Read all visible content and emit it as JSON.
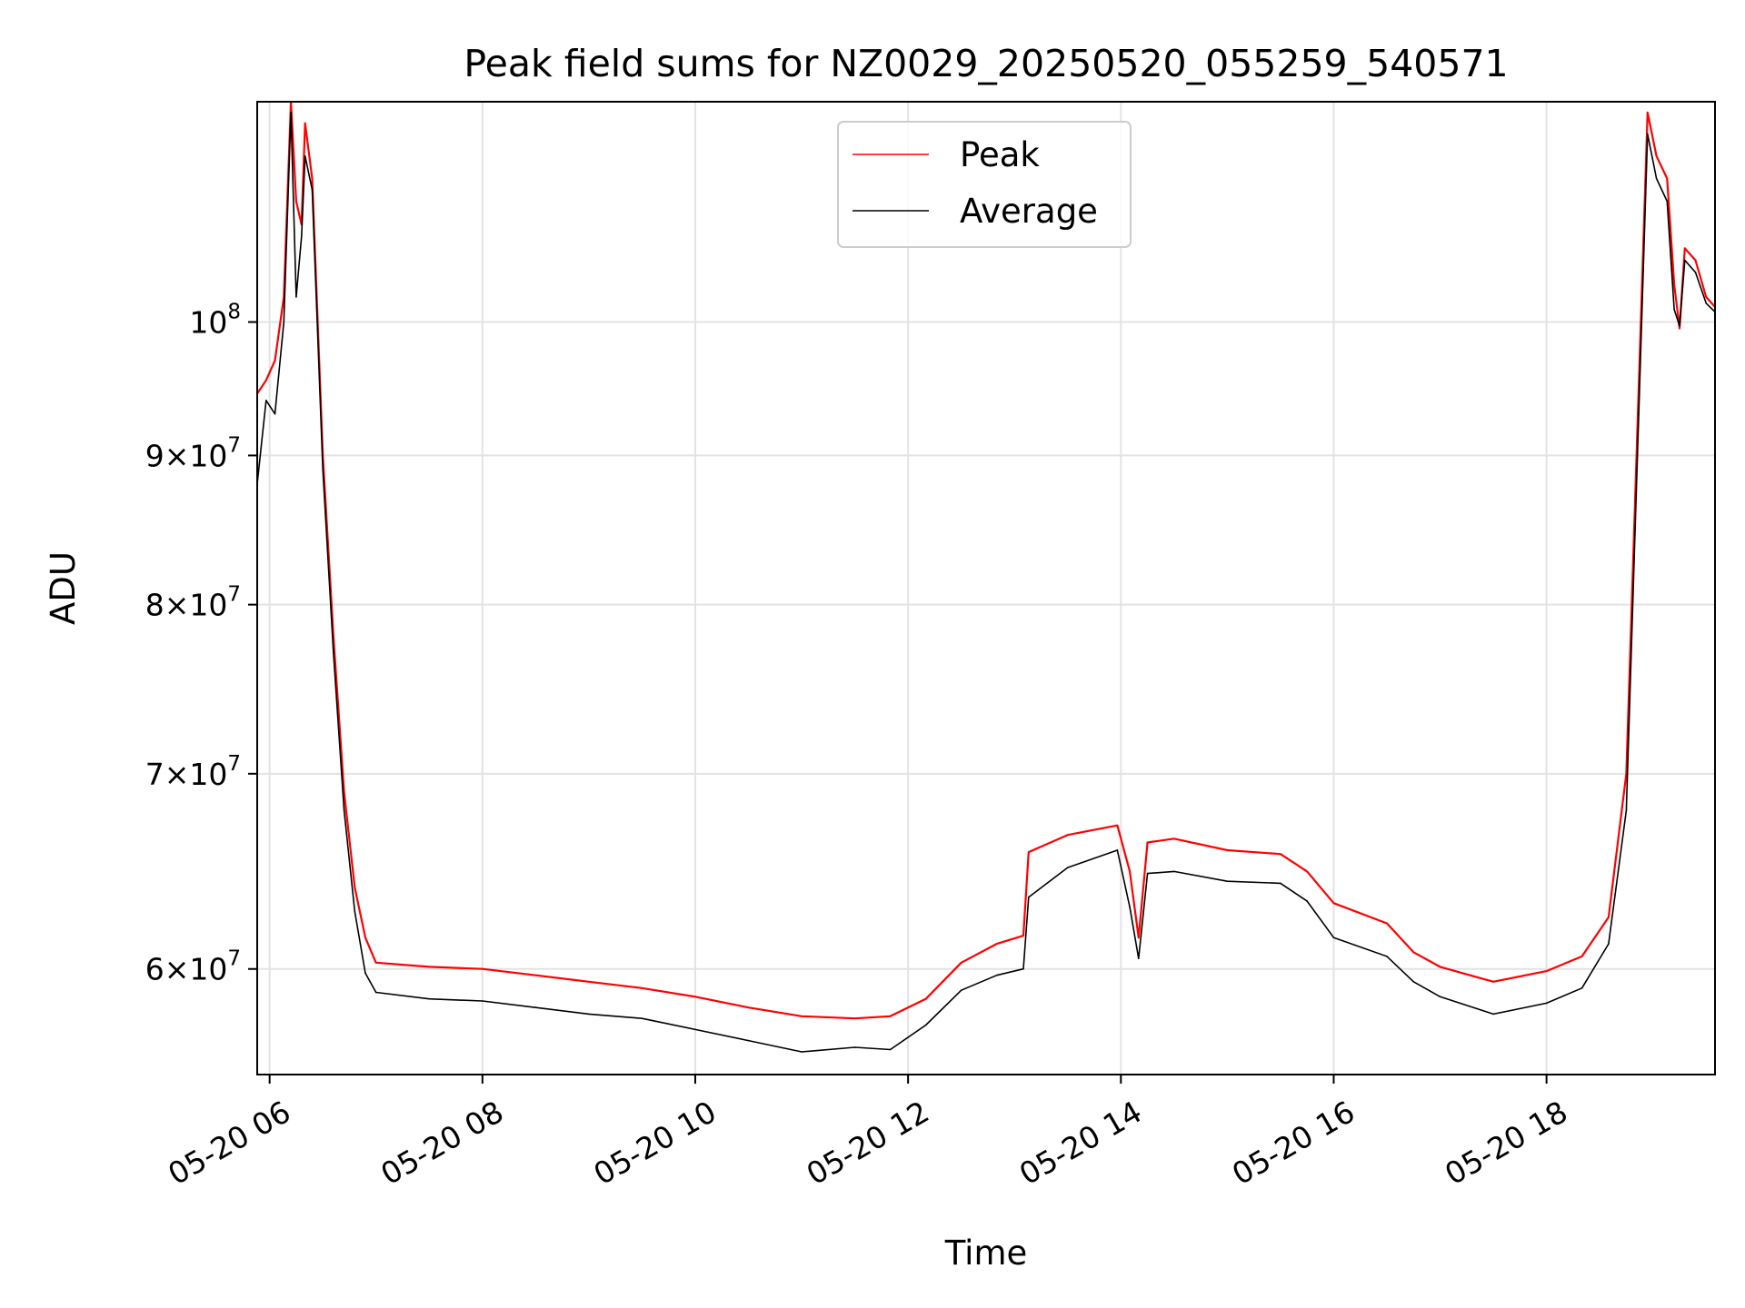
{
  "chart_data": {
    "type": "line",
    "title": "Peak field sums for NZ0029_20250520_055259_540571",
    "xlabel": "Time",
    "ylabel": "ADU",
    "y_scale": "log",
    "grid": true,
    "legend_position": "top-center",
    "xlim": [
      "05-20 05:53",
      "05-20 19:35"
    ],
    "ylim": [
      55200000,
      119000000
    ],
    "x_ticks": [
      {
        "t": "05-20 06:00",
        "label": "05-20 06"
      },
      {
        "t": "05-20 08:00",
        "label": "05-20 08"
      },
      {
        "t": "05-20 10:00",
        "label": "05-20 10"
      },
      {
        "t": "05-20 12:00",
        "label": "05-20 12"
      },
      {
        "t": "05-20 14:00",
        "label": "05-20 14"
      },
      {
        "t": "05-20 16:00",
        "label": "05-20 16"
      },
      {
        "t": "05-20 18:00",
        "label": "05-20 18"
      }
    ],
    "y_ticks": [
      {
        "value": 60000000,
        "mant": "6",
        "exp": "7"
      },
      {
        "value": 70000000,
        "mant": "7",
        "exp": "7"
      },
      {
        "value": 80000000,
        "mant": "8",
        "exp": "7"
      },
      {
        "value": 90000000,
        "mant": "9",
        "exp": "7"
      },
      {
        "value": 100000000,
        "mant": "",
        "exp": "8"
      }
    ],
    "series": [
      {
        "name": "Peak",
        "color": "#ff0000",
        "points": [
          [
            "05-20 05:53",
            94500000
          ],
          [
            "05-20 05:58",
            95500000
          ],
          [
            "05-20 06:03",
            97000000
          ],
          [
            "05-20 06:08",
            102000000
          ],
          [
            "05-20 06:12",
            119000000
          ],
          [
            "05-20 06:15",
            110000000
          ],
          [
            "05-20 06:18",
            108000000
          ],
          [
            "05-20 06:20",
            117000000
          ],
          [
            "05-20 06:24",
            112000000
          ],
          [
            "05-20 06:30",
            90000000
          ],
          [
            "05-20 06:36",
            78000000
          ],
          [
            "05-20 06:42",
            69000000
          ],
          [
            "05-20 06:48",
            64000000
          ],
          [
            "05-20 06:54",
            61500000
          ],
          [
            "05-20 07:00",
            60300000
          ],
          [
            "05-20 07:30",
            60100000
          ],
          [
            "05-20 08:00",
            60000000
          ],
          [
            "05-20 08:30",
            59700000
          ],
          [
            "05-20 09:00",
            59400000
          ],
          [
            "05-20 09:30",
            59100000
          ],
          [
            "05-20 10:00",
            58700000
          ],
          [
            "05-20 10:30",
            58200000
          ],
          [
            "05-20 11:00",
            57800000
          ],
          [
            "05-20 11:30",
            57700000
          ],
          [
            "05-20 11:50",
            57800000
          ],
          [
            "05-20 12:10",
            58600000
          ],
          [
            "05-20 12:30",
            60300000
          ],
          [
            "05-20 12:50",
            61200000
          ],
          [
            "05-20 13:05",
            61600000
          ],
          [
            "05-20 13:08",
            65800000
          ],
          [
            "05-20 13:30",
            66700000
          ],
          [
            "05-20 13:58",
            67200000
          ],
          [
            "05-20 14:05",
            64800000
          ],
          [
            "05-20 14:10",
            61500000
          ],
          [
            "05-20 14:15",
            66300000
          ],
          [
            "05-20 14:30",
            66500000
          ],
          [
            "05-20 15:00",
            65900000
          ],
          [
            "05-20 15:30",
            65700000
          ],
          [
            "05-20 15:45",
            64800000
          ],
          [
            "05-20 16:00",
            63200000
          ],
          [
            "05-20 16:30",
            62200000
          ],
          [
            "05-20 16:45",
            60800000
          ],
          [
            "05-20 17:00",
            60100000
          ],
          [
            "05-20 17:30",
            59400000
          ],
          [
            "05-20 18:00",
            59900000
          ],
          [
            "05-20 18:20",
            60600000
          ],
          [
            "05-20 18:35",
            62500000
          ],
          [
            "05-20 18:45",
            70000000
          ],
          [
            "05-20 18:52",
            95000000
          ],
          [
            "05-20 18:57",
            118000000
          ],
          [
            "05-20 19:02",
            114000000
          ],
          [
            "05-20 19:08",
            112000000
          ],
          [
            "05-20 19:12",
            103000000
          ],
          [
            "05-20 19:15",
            99500000
          ],
          [
            "05-20 19:18",
            106000000
          ],
          [
            "05-20 19:24",
            105000000
          ],
          [
            "05-20 19:30",
            102000000
          ],
          [
            "05-20 19:35",
            101200000
          ]
        ]
      },
      {
        "name": "Average",
        "color": "#000000",
        "points": [
          [
            "05-20 05:53",
            88000000
          ],
          [
            "05-20 05:58",
            94000000
          ],
          [
            "05-20 06:03",
            93000000
          ],
          [
            "05-20 06:08",
            100000000
          ],
          [
            "05-20 06:12",
            118000000
          ],
          [
            "05-20 06:15",
            102000000
          ],
          [
            "05-20 06:18",
            107000000
          ],
          [
            "05-20 06:20",
            114000000
          ],
          [
            "05-20 06:24",
            111000000
          ],
          [
            "05-20 06:30",
            89000000
          ],
          [
            "05-20 06:36",
            77000000
          ],
          [
            "05-20 06:42",
            68000000
          ],
          [
            "05-20 06:48",
            62800000
          ],
          [
            "05-20 06:54",
            59800000
          ],
          [
            "05-20 07:00",
            58900000
          ],
          [
            "05-20 07:30",
            58600000
          ],
          [
            "05-20 08:00",
            58500000
          ],
          [
            "05-20 08:30",
            58200000
          ],
          [
            "05-20 09:00",
            57900000
          ],
          [
            "05-20 09:30",
            57700000
          ],
          [
            "05-20 10:00",
            57200000
          ],
          [
            "05-20 10:30",
            56700000
          ],
          [
            "05-20 11:00",
            56200000
          ],
          [
            "05-20 11:30",
            56400000
          ],
          [
            "05-20 11:50",
            56300000
          ],
          [
            "05-20 12:10",
            57400000
          ],
          [
            "05-20 12:30",
            59000000
          ],
          [
            "05-20 12:50",
            59700000
          ],
          [
            "05-20 13:05",
            60000000
          ],
          [
            "05-20 13:08",
            63500000
          ],
          [
            "05-20 13:30",
            65000000
          ],
          [
            "05-20 13:58",
            65900000
          ],
          [
            "05-20 14:05",
            63000000
          ],
          [
            "05-20 14:10",
            60500000
          ],
          [
            "05-20 14:15",
            64700000
          ],
          [
            "05-20 14:30",
            64800000
          ],
          [
            "05-20 15:00",
            64300000
          ],
          [
            "05-20 15:30",
            64200000
          ],
          [
            "05-20 15:45",
            63300000
          ],
          [
            "05-20 16:00",
            61500000
          ],
          [
            "05-20 16:30",
            60600000
          ],
          [
            "05-20 16:45",
            59400000
          ],
          [
            "05-20 17:00",
            58700000
          ],
          [
            "05-20 17:30",
            57900000
          ],
          [
            "05-20 18:00",
            58400000
          ],
          [
            "05-20 18:20",
            59100000
          ],
          [
            "05-20 18:35",
            61200000
          ],
          [
            "05-20 18:45",
            68000000
          ],
          [
            "05-20 18:52",
            93000000
          ],
          [
            "05-20 18:57",
            116000000
          ],
          [
            "05-20 19:02",
            112000000
          ],
          [
            "05-20 19:08",
            110000000
          ],
          [
            "05-20 19:12",
            101000000
          ],
          [
            "05-20 19:15",
            99700000
          ],
          [
            "05-20 19:18",
            105000000
          ],
          [
            "05-20 19:24",
            104000000
          ],
          [
            "05-20 19:30",
            101500000
          ],
          [
            "05-20 19:35",
            100800000
          ]
        ]
      }
    ]
  }
}
